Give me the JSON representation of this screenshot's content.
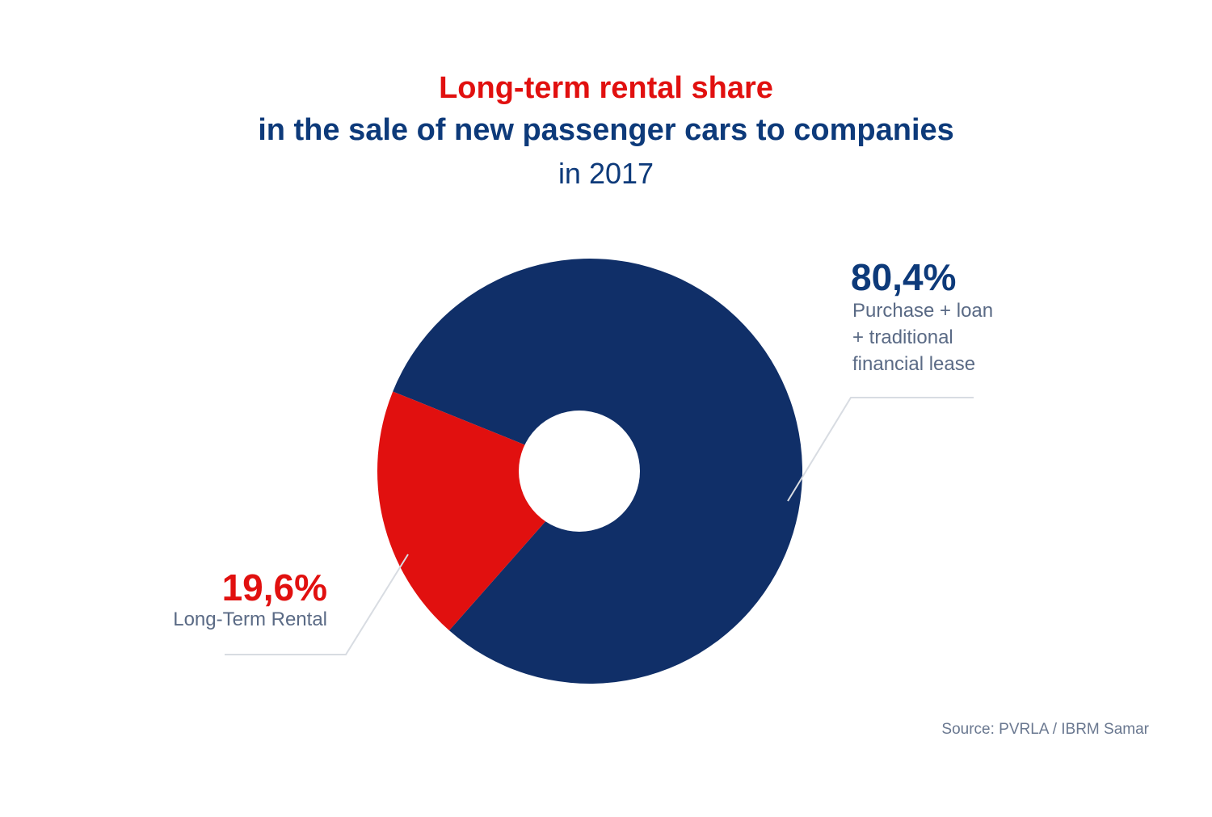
{
  "chart_data": {
    "type": "pie",
    "title": "Long-term rental share",
    "title_line2": "in the sale of new passenger cars to companies",
    "subtitle": "in 2017",
    "categories": [
      "Purchase + loan + traditional financial lease",
      "Long-Term Rental"
    ],
    "values": [
      80.4,
      19.6
    ],
    "value_labels": [
      "80,4%",
      "19,6%"
    ],
    "colors": [
      "#102f68",
      "#e1100f"
    ],
    "source": "Source: PVRLA / IBRM Samar"
  }
}
